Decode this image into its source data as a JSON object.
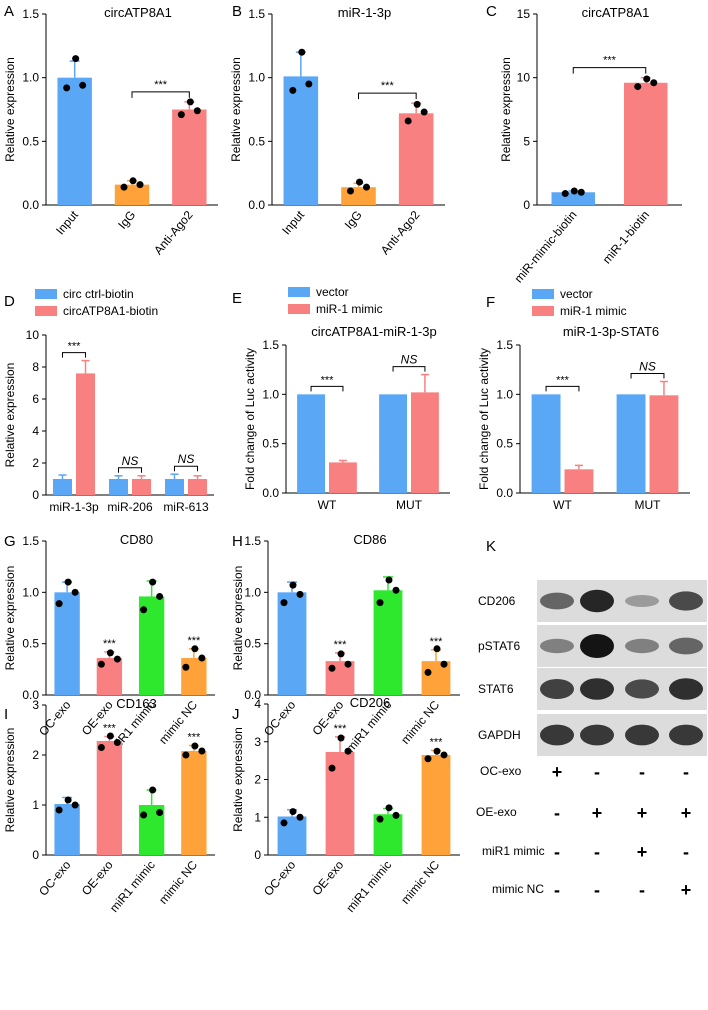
{
  "chart_data": [
    {
      "id": "A",
      "type": "bar",
      "panel_label": "A",
      "title": "circATP8A1",
      "ylabel": "Relative expression",
      "ylim": [
        0,
        1.5
      ],
      "yticks": [
        "0.0",
        "0.5",
        "1.0",
        "1.5"
      ],
      "categories": [
        "Input",
        "IgG",
        "Anti-Ago2"
      ],
      "values": [
        1.0,
        0.16,
        0.75
      ],
      "errors": [
        0.13,
        0.03,
        0.06
      ],
      "points": [
        [
          0.92,
          0.94,
          1.15
        ],
        [
          0.14,
          0.16,
          0.19
        ],
        [
          0.71,
          0.74,
          0.81
        ]
      ],
      "colors": [
        "#5aa7f5",
        "#ffa23a",
        "#f98080"
      ],
      "significance": [
        {
          "from": 1,
          "to": 2,
          "label": "***"
        }
      ]
    },
    {
      "id": "B",
      "type": "bar",
      "panel_label": "B",
      "title": "miR-1-3p",
      "ylabel": "Relative expression",
      "ylim": [
        0,
        1.5
      ],
      "yticks": [
        "0.0",
        "0.5",
        "1.0",
        "1.5"
      ],
      "categories": [
        "Input",
        "IgG",
        "Anti-Ago2"
      ],
      "values": [
        1.01,
        0.14,
        0.72
      ],
      "errors": [
        0.19,
        0.03,
        0.08
      ],
      "points": [
        [
          0.9,
          0.95,
          1.2
        ],
        [
          0.11,
          0.14,
          0.18
        ],
        [
          0.66,
          0.73,
          0.79
        ]
      ],
      "colors": [
        "#5aa7f5",
        "#ffa23a",
        "#f98080"
      ],
      "significance": [
        {
          "from": 1,
          "to": 2,
          "label": "***"
        }
      ]
    },
    {
      "id": "C",
      "type": "bar",
      "panel_label": "C",
      "title": "circATP8A1",
      "ylabel": "Relative expression",
      "ylim": [
        0,
        15
      ],
      "yticks": [
        "0",
        "5",
        "10",
        "15"
      ],
      "categories": [
        "miR-mimic-biotin",
        "miR-1-biotin"
      ],
      "values": [
        1.0,
        9.6
      ],
      "errors": [
        0.1,
        0.4
      ],
      "points": [
        [
          0.9,
          1.0,
          1.1
        ],
        [
          9.3,
          9.6,
          9.9
        ]
      ],
      "colors": [
        "#5aa7f5",
        "#f98080"
      ],
      "significance": [
        {
          "from": 0,
          "to": 1,
          "label": "***"
        }
      ]
    },
    {
      "id": "D",
      "type": "bar",
      "panel_label": "D",
      "title": "",
      "ylabel": "Relative  expression",
      "ylim": [
        0,
        10
      ],
      "yticks": [
        "0",
        "2",
        "4",
        "6",
        "8",
        "10"
      ],
      "categories": [
        "miR-1-3p",
        "miR-206",
        "miR-613"
      ],
      "series": [
        {
          "name": "circ ctrl-biotin",
          "color": "#5aa7f5",
          "values": [
            1.0,
            1.0,
            1.0
          ],
          "errors": [
            0.25,
            0.2,
            0.3
          ]
        },
        {
          "name": "circATP8A1-biotin",
          "color": "#f98080",
          "values": [
            7.6,
            1.0,
            1.0
          ],
          "errors": [
            0.8,
            0.2,
            0.2
          ]
        }
      ],
      "significance": [
        {
          "group": 0,
          "label": "***"
        },
        {
          "group": 1,
          "label": "NS"
        },
        {
          "group": 2,
          "label": "NS"
        }
      ]
    },
    {
      "id": "E",
      "type": "bar",
      "panel_label": "E",
      "title": "circATP8A1-miR-1-3p",
      "ylabel": "Fold change of Luc activity",
      "ylim": [
        0,
        1.5
      ],
      "yticks": [
        "0.0",
        "0.5",
        "1.0",
        "1.5"
      ],
      "categories": [
        "WT",
        "MUT"
      ],
      "series": [
        {
          "name": "vector",
          "color": "#5aa7f5",
          "values": [
            1.0,
            1.0
          ],
          "errors": [
            0,
            0
          ]
        },
        {
          "name": "miR-1 mimic",
          "color": "#f98080",
          "values": [
            0.31,
            1.02
          ],
          "errors": [
            0.02,
            0.18
          ]
        }
      ],
      "significance": [
        {
          "group": 0,
          "label": "***"
        },
        {
          "group": 1,
          "label": "NS"
        }
      ]
    },
    {
      "id": "F",
      "type": "bar",
      "panel_label": "F",
      "title": "miR-1-3p-STAT6",
      "ylabel": "Fold change of Luc activity",
      "ylim": [
        0,
        1.5
      ],
      "yticks": [
        "0.0",
        "0.5",
        "1.0",
        "1.5"
      ],
      "categories": [
        "WT",
        "MUT"
      ],
      "series": [
        {
          "name": "vector",
          "color": "#5aa7f5",
          "values": [
            1.0,
            1.0
          ],
          "errors": [
            0,
            0
          ]
        },
        {
          "name": "miR-1 mimic",
          "color": "#f98080",
          "values": [
            0.24,
            0.99
          ],
          "errors": [
            0.04,
            0.14
          ]
        }
      ],
      "significance": [
        {
          "group": 0,
          "label": "***"
        },
        {
          "group": 1,
          "label": "NS"
        }
      ]
    },
    {
      "id": "G",
      "type": "bar",
      "panel_label": "G",
      "title": "CD80",
      "ylabel": "Relative  expression",
      "ylim": [
        0,
        1.5
      ],
      "yticks": [
        "0.0",
        "0.5",
        "1.0",
        "1.5"
      ],
      "categories": [
        "OC-exo",
        "OE-exo",
        "miR1 mimic",
        "mimic NC"
      ],
      "values": [
        1.0,
        0.36,
        0.96,
        0.36
      ],
      "errors": [
        0.1,
        0.06,
        0.15,
        0.09
      ],
      "points": [
        [
          0.89,
          1.0,
          1.1
        ],
        [
          0.3,
          0.35,
          0.41
        ],
        [
          0.83,
          0.96,
          1.1
        ],
        [
          0.27,
          0.36,
          0.45
        ]
      ],
      "colors": [
        "#5aa7f5",
        "#f98080",
        "#2ee82e",
        "#ffa23a"
      ],
      "stars": [
        "",
        "***",
        "",
        "***"
      ]
    },
    {
      "id": "H",
      "type": "bar",
      "panel_label": "H",
      "title": "CD86",
      "ylabel": "Relative  expression",
      "ylim": [
        0,
        1.5
      ],
      "yticks": [
        "0.0",
        "0.5",
        "1.0",
        "1.5"
      ],
      "categories": [
        "OC-exo",
        "OE-exo",
        "miR1 mimic",
        "mimic NC"
      ],
      "values": [
        1.0,
        0.33,
        1.02,
        0.33
      ],
      "errors": [
        0.1,
        0.08,
        0.13,
        0.11
      ],
      "points": [
        [
          0.9,
          0.98,
          1.07
        ],
        [
          0.26,
          0.3,
          0.4
        ],
        [
          0.9,
          1.02,
          1.12
        ],
        [
          0.22,
          0.3,
          0.45
        ]
      ],
      "colors": [
        "#5aa7f5",
        "#f98080",
        "#2ee82e",
        "#ffa23a"
      ],
      "stars": [
        "",
        "***",
        "",
        "***"
      ]
    },
    {
      "id": "I",
      "type": "bar",
      "panel_label": "I",
      "title": "CD163",
      "ylabel": "Relative  expression",
      "ylim": [
        0,
        3
      ],
      "yticks": [
        "0",
        "1",
        "2",
        "3"
      ],
      "categories": [
        "OC-exo",
        "OE-exo",
        "miR1 mimic",
        "mimic NC"
      ],
      "values": [
        1.02,
        2.28,
        1.0,
        2.08
      ],
      "errors": [
        0.13,
        0.09,
        0.3,
        0.11
      ],
      "points": [
        [
          0.9,
          1.0,
          1.1
        ],
        [
          2.15,
          2.25,
          2.38
        ],
        [
          0.8,
          0.85,
          1.3
        ],
        [
          2.0,
          2.08,
          2.18
        ]
      ],
      "colors": [
        "#5aa7f5",
        "#f98080",
        "#2ee82e",
        "#ffa23a"
      ],
      "stars": [
        "",
        "***",
        "",
        "***"
      ]
    },
    {
      "id": "J",
      "type": "bar",
      "panel_label": "J",
      "title": "CD206",
      "ylabel": "Relative  expression",
      "ylim": [
        0,
        4
      ],
      "yticks": [
        "0",
        "1",
        "2",
        "3",
        "4"
      ],
      "categories": [
        "OC-exo",
        "OE-exo",
        "miR1 mimic",
        "mimic NC"
      ],
      "values": [
        1.02,
        2.73,
        1.08,
        2.65
      ],
      "errors": [
        0.18,
        0.4,
        0.15,
        0.12
      ],
      "points": [
        [
          0.85,
          1.0,
          1.15
        ],
        [
          2.3,
          2.75,
          3.1
        ],
        [
          0.95,
          1.05,
          1.25
        ],
        [
          2.55,
          2.65,
          2.75
        ]
      ],
      "colors": [
        "#5aa7f5",
        "#f98080",
        "#2ee82e",
        "#ffa23a"
      ],
      "stars": [
        "",
        "***",
        "",
        "***"
      ]
    }
  ],
  "western_blot": {
    "panel_label": "K",
    "bands": [
      "CD206",
      "pSTAT6",
      "STAT6",
      "GAPDH"
    ],
    "intensity": [
      [
        0.55,
        0.9,
        0.25,
        0.7
      ],
      [
        0.4,
        1.0,
        0.4,
        0.55
      ],
      [
        0.75,
        0.85,
        0.7,
        0.85
      ],
      [
        0.8,
        0.8,
        0.8,
        0.8
      ]
    ],
    "conditions": [
      {
        "label": "OC-exo",
        "signs": [
          "+",
          "-",
          "-",
          "-"
        ]
      },
      {
        "label": "OE-exo",
        "signs": [
          "-",
          "+",
          "+",
          "+"
        ]
      },
      {
        "label": "miR1 mimic",
        "signs": [
          "-",
          "-",
          "+",
          "-"
        ]
      },
      {
        "label": "mimic NC",
        "signs": [
          "-",
          "-",
          "-",
          "+"
        ]
      }
    ]
  }
}
